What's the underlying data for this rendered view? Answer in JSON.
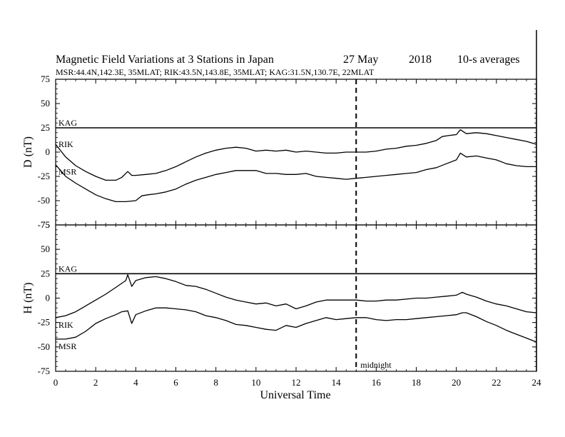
{
  "title": {
    "main": "Magnetic Field Variations at 3 Stations in Japan",
    "date": "27 May",
    "year": "2018",
    "averaging": "10-s averages"
  },
  "subtitle": "MSR:44.4N,142.3E, 35MLAT;  RIK:43.5N,143.8E, 35MLAT;  KAG:31.5N,130.7E, 22MLAT",
  "xlabel": "Universal Time",
  "annotation": "midnight",
  "chart_data": [
    {
      "type": "line",
      "panel": "top",
      "ylabel": "D (nT)",
      "xlim": [
        0,
        24
      ],
      "ylim": [
        -75,
        75
      ],
      "xticks": [
        0,
        2,
        4,
        6,
        8,
        10,
        12,
        14,
        16,
        18,
        20,
        22,
        24
      ],
      "yticks": [
        75,
        50,
        25,
        0,
        -25,
        -50,
        -75
      ],
      "grid": false,
      "vline": {
        "x": 15,
        "style": "dashed",
        "label": "midnight"
      },
      "series": [
        {
          "name": "KAG",
          "x": [
            0,
            24
          ],
          "values": [
            25,
            25
          ]
        },
        {
          "name": "RIK",
          "x": [
            0,
            0.5,
            1,
            1.5,
            2,
            2.5,
            3,
            3.3,
            3.6,
            3.8,
            4,
            4.5,
            5,
            5.5,
            6,
            6.5,
            7,
            7.5,
            8,
            8.5,
            9,
            9.5,
            10,
            10.5,
            11,
            11.5,
            12,
            12.5,
            13,
            13.5,
            14,
            14.5,
            15,
            15.5,
            16,
            16.5,
            17,
            17.5,
            18,
            18.5,
            19,
            19.3,
            19.6,
            20,
            20.2,
            20.5,
            21,
            21.5,
            22,
            22.5,
            23,
            23.5,
            24
          ],
          "values": [
            8,
            -5,
            -14,
            -20,
            -25,
            -29,
            -29,
            -26,
            -20,
            -24,
            -24,
            -23,
            -22,
            -19,
            -15,
            -10,
            -5,
            -1,
            2,
            4,
            5,
            4,
            1,
            2,
            1,
            2,
            0,
            1,
            0,
            -1,
            -1,
            0,
            0,
            0,
            1,
            3,
            4,
            6,
            7,
            9,
            12,
            16,
            17,
            18,
            23,
            19,
            20,
            19,
            17,
            15,
            13,
            11,
            8
          ]
        },
        {
          "name": "MSR",
          "x": [
            0,
            0.5,
            1,
            1.5,
            2,
            2.5,
            3,
            3.5,
            4,
            4.3,
            4.6,
            5,
            5.5,
            6,
            6.5,
            7,
            7.5,
            8,
            8.5,
            9,
            9.5,
            10,
            10.5,
            11,
            11.5,
            12,
            12.5,
            13,
            13.5,
            14,
            14.5,
            15,
            15.5,
            16,
            16.5,
            17,
            17.5,
            18,
            18.5,
            19,
            19.5,
            20,
            20.2,
            20.5,
            21,
            21.5,
            22,
            22.5,
            23,
            23.5,
            24
          ],
          "values": [
            -13,
            -25,
            -32,
            -38,
            -44,
            -48,
            -51,
            -51,
            -50,
            -45,
            -44,
            -43,
            -41,
            -38,
            -33,
            -29,
            -26,
            -23,
            -21,
            -19,
            -19,
            -19,
            -22,
            -22,
            -23,
            -23,
            -22,
            -25,
            -26,
            -27,
            -28,
            -27,
            -26,
            -25,
            -24,
            -23,
            -22,
            -21,
            -18,
            -16,
            -12,
            -8,
            -1,
            -5,
            -4,
            -6,
            -8,
            -12,
            -14,
            -15,
            -15
          ]
        }
      ]
    },
    {
      "type": "line",
      "panel": "bottom",
      "ylabel": "H (nT)",
      "xlim": [
        0,
        24
      ],
      "ylim": [
        -75,
        75
      ],
      "xticks": [
        0,
        2,
        4,
        6,
        8,
        10,
        12,
        14,
        16,
        18,
        20,
        22,
        24
      ],
      "yticks": [
        75,
        50,
        25,
        0,
        -25,
        -50,
        -75
      ],
      "grid": false,
      "vline": {
        "x": 15,
        "style": "dashed",
        "label": "midnight"
      },
      "series": [
        {
          "name": "KAG",
          "x": [
            0,
            24
          ],
          "values": [
            25,
            25
          ]
        },
        {
          "name": "RIK",
          "x": [
            0,
            0.5,
            1,
            1.5,
            2,
            2.5,
            3,
            3.5,
            3.6,
            3.8,
            4,
            4.5,
            5,
            5.5,
            6,
            6.5,
            7,
            7.5,
            8,
            8.5,
            9,
            9.5,
            10,
            10.5,
            11,
            11.5,
            12,
            12.5,
            13,
            13.5,
            14,
            14.5,
            15,
            15.5,
            16,
            16.5,
            17,
            17.5,
            18,
            18.5,
            19,
            19.5,
            20,
            20.3,
            20.5,
            21,
            21.5,
            22,
            22.5,
            23,
            23.5,
            24
          ],
          "values": [
            -20,
            -18,
            -14,
            -8,
            -2,
            4,
            11,
            18,
            24,
            12,
            18,
            21,
            22,
            20,
            17,
            13,
            12,
            9,
            5,
            1,
            -2,
            -4,
            -6,
            -5,
            -8,
            -6,
            -11,
            -8,
            -4,
            -2,
            -2,
            -2,
            -2,
            -3,
            -3,
            -2,
            -2,
            -1,
            0,
            0,
            1,
            2,
            3,
            6,
            4,
            1,
            -3,
            -6,
            -8,
            -11,
            -14,
            -15
          ]
        },
        {
          "name": "MSR",
          "x": [
            0,
            0.5,
            1,
            1.5,
            2,
            2.5,
            3,
            3.3,
            3.6,
            3.8,
            4,
            4.5,
            5,
            5.5,
            6,
            6.5,
            7,
            7.5,
            8,
            8.5,
            9,
            9.5,
            10,
            10.5,
            11,
            11.5,
            12,
            12.5,
            13,
            13.5,
            14,
            14.5,
            15,
            15.5,
            16,
            16.5,
            17,
            17.5,
            18,
            18.5,
            19,
            19.5,
            20,
            20.3,
            20.5,
            21,
            21.5,
            22,
            22.5,
            23,
            23.5,
            24
          ],
          "values": [
            -42,
            -42,
            -40,
            -34,
            -26,
            -21,
            -17,
            -14,
            -13,
            -26,
            -17,
            -13,
            -10,
            -10,
            -11,
            -12,
            -14,
            -18,
            -20,
            -23,
            -27,
            -28,
            -30,
            -32,
            -33,
            -28,
            -30,
            -26,
            -23,
            -20,
            -22,
            -21,
            -20,
            -20,
            -22,
            -23,
            -22,
            -22,
            -21,
            -20,
            -19,
            -18,
            -17,
            -15,
            -15,
            -19,
            -24,
            -28,
            -33,
            -37,
            -41,
            -45
          ]
        }
      ]
    }
  ]
}
